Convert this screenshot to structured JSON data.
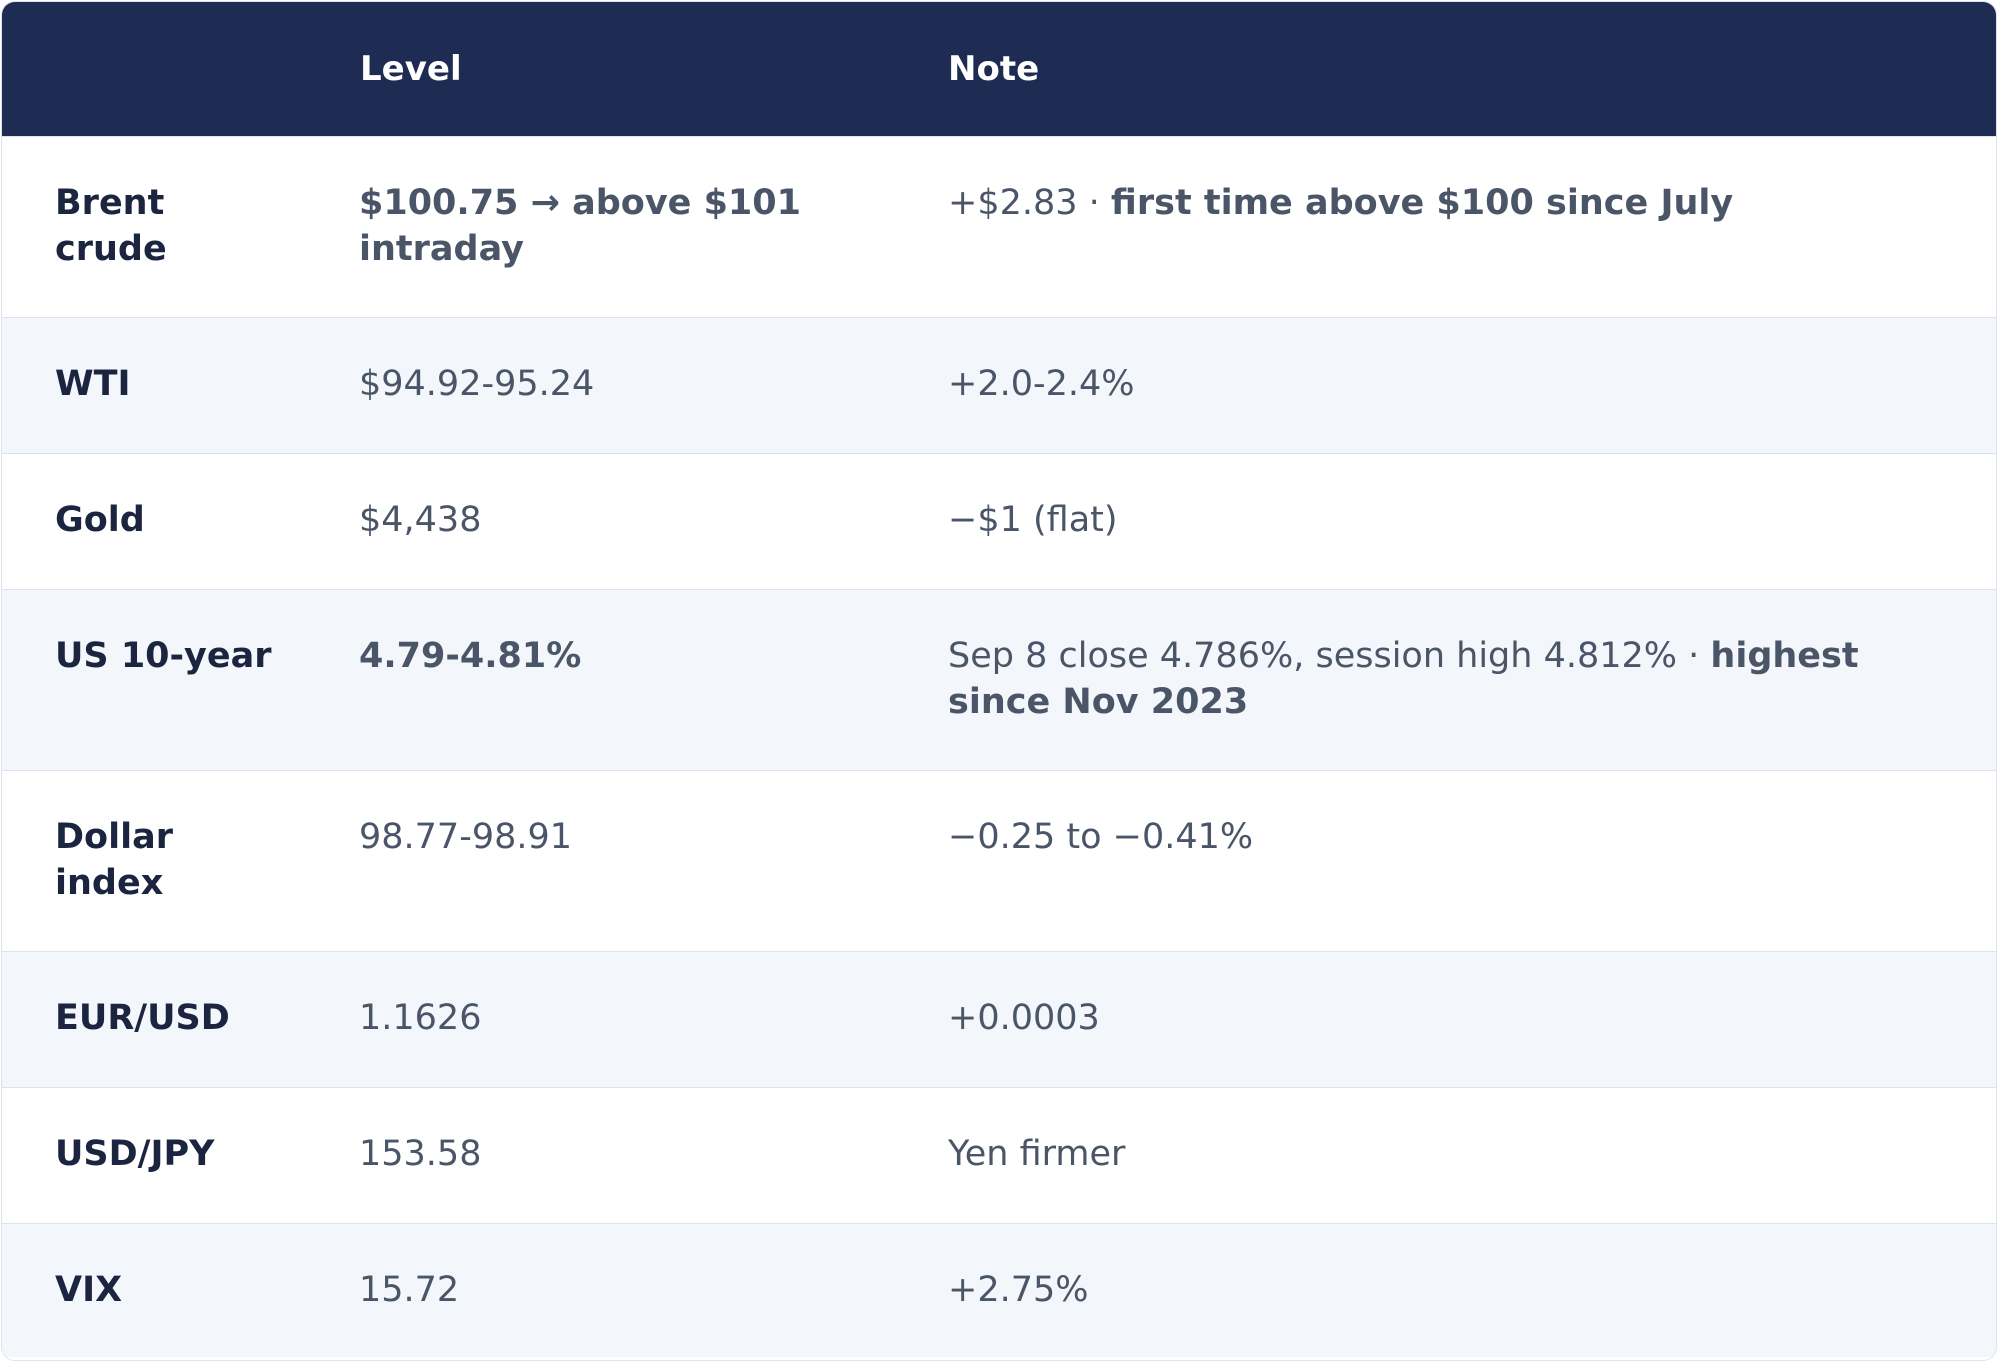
{
  "header": {
    "col_asset": "",
    "col_level": "Level",
    "col_note": "Note"
  },
  "rows": [
    {
      "asset": "Brent crude",
      "level": "$100.75 → above $101 intraday",
      "level_bold": true,
      "note_plain": "+$2.83 · ",
      "note_bold": "first time above $100 since July"
    },
    {
      "asset": "WTI",
      "level": "$94.92-95.24",
      "level_bold": false,
      "note_plain": "+2.0-2.4%",
      "note_bold": ""
    },
    {
      "asset": "Gold",
      "level": "$4,438",
      "level_bold": false,
      "note_plain": "−$1 (flat)",
      "note_bold": ""
    },
    {
      "asset": "US 10-year",
      "level": "4.79-4.81%",
      "level_bold": true,
      "note_plain": "Sep 8 close 4.786%, session high 4.812% · ",
      "note_bold": "highest since Nov 2023"
    },
    {
      "asset": "Dollar index",
      "level": "98.77-98.91",
      "level_bold": false,
      "note_plain": "−0.25 to −0.41%",
      "note_bold": ""
    },
    {
      "asset": "EUR/USD",
      "level": "1.1626",
      "level_bold": false,
      "note_plain": "+0.0003",
      "note_bold": ""
    },
    {
      "asset": "USD/JPY",
      "level": "153.58",
      "level_bold": false,
      "note_plain": "Yen firmer",
      "note_bold": ""
    },
    {
      "asset": "VIX",
      "level": "15.72",
      "level_bold": false,
      "note_plain": "+2.75%",
      "note_bold": ""
    }
  ],
  "colors": {
    "header_bg": "#1e2b52",
    "header_text": "#ffffff",
    "row_alt_bg": "#f3f6fb",
    "asset_text": "#1c2540",
    "body_text": "#4b5568",
    "border": "#dde3ec"
  }
}
